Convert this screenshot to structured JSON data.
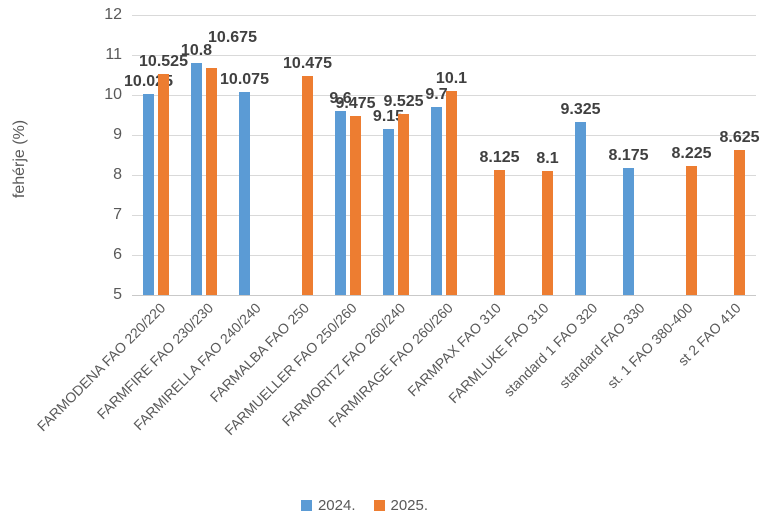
{
  "chart_data": {
    "type": "bar",
    "title": "",
    "ylabel": "fehérje (%)",
    "xlabel": "",
    "ylim": [
      5,
      12
    ],
    "ytick_step": 1,
    "grid": true,
    "legend_position": "bottom",
    "background_color": "#FFFFFF",
    "axis_text_color": "#595959",
    "label_text_color": "#404040",
    "gridline_color": "#D9D9D9",
    "axis_line_color": "#C9C9C9",
    "categories": [
      "FARMODENA FAO 220/220",
      "FARMFIRE FAO 230/230",
      "FARMIRELLA FAO 240/240",
      "FARMALBA FAO 250",
      "FARMUELLER FAO 250/260",
      "FARMORITZ FAO 260/240",
      "FARMIRAGE FAO 260/260",
      "FARMPAX FAO 310",
      "FARMLUKE FAO 310",
      "standard 1 FAO 320",
      "standard  FAO 330",
      "st. 1 FAO 380-400",
      "st 2 FAO 410"
    ],
    "series": [
      {
        "name": "2024.",
        "color": "#5B9BD5",
        "values": [
          10.025,
          10.8,
          10.075,
          null,
          9.6,
          9.15,
          9.7,
          null,
          null,
          9.325,
          8.175,
          null,
          null
        ]
      },
      {
        "name": "2025.",
        "color": "#ED7D31",
        "values": [
          10.525,
          10.675,
          null,
          10.475,
          9.475,
          9.525,
          10.1,
          8.125,
          8.1,
          null,
          null,
          8.225,
          8.625
        ]
      }
    ],
    "label_adjustments": [
      {
        "series": 1,
        "index": 1,
        "dx": 21,
        "dy": 18
      }
    ]
  }
}
